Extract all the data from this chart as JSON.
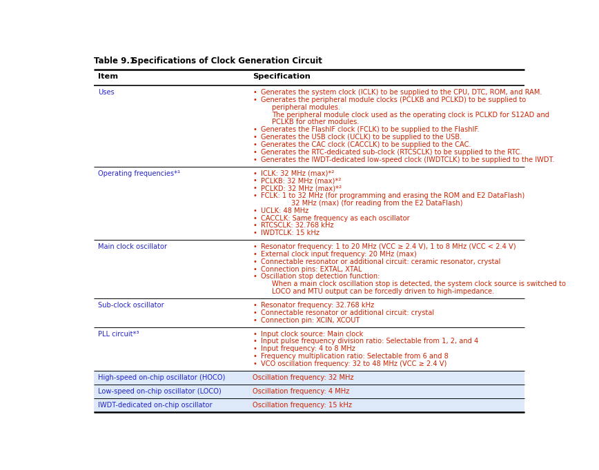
{
  "title": "Table 9.1",
  "title_bold": "Specifications of Clock Generation Circuit",
  "bg_color": "#ffffff",
  "item_color": "#2222cc",
  "spec_color": "#cc2200",
  "col_split": 0.355,
  "rows": [
    {
      "item": "Uses",
      "specs": [
        {
          "bullet": true,
          "indent": 0,
          "text": "Generates the system clock (ICLK) to be supplied to the CPU, DTC, ROM, and RAM."
        },
        {
          "bullet": true,
          "indent": 0,
          "text": "Generates the peripheral module clocks (PCLKB and PCLKD) to be supplied to"
        },
        {
          "bullet": false,
          "indent": 2,
          "text": "peripheral modules."
        },
        {
          "bullet": false,
          "indent": 2,
          "text": "The peripheral module clock used as the operating clock is PCLKD for S12AD and"
        },
        {
          "bullet": false,
          "indent": 2,
          "text": "PCLKB for other modules."
        },
        {
          "bullet": true,
          "indent": 0,
          "text": "Generates the FlashIF clock (FCLK) to be supplied to the FlashIF."
        },
        {
          "bullet": true,
          "indent": 0,
          "text": "Generates the USB clock (UCLK) to be supplied to the USB."
        },
        {
          "bullet": true,
          "indent": 0,
          "text": "Generates the CAC clock (CACCLK) to be supplied to the CAC."
        },
        {
          "bullet": true,
          "indent": 0,
          "text": "Generates the RTC-dedicated sub-clock (RTCSCLK) to be supplied to the RTC."
        },
        {
          "bullet": true,
          "indent": 0,
          "text": "Generates the IWDT-dedicated low-speed clock (IWDTCLK) to be supplied to the IWDT."
        }
      ],
      "row_bg": "#ffffff"
    },
    {
      "item": "Operating frequencies*¹",
      "specs": [
        {
          "bullet": true,
          "indent": 0,
          "text": "ICLK: 32 MHz (max)*²"
        },
        {
          "bullet": true,
          "indent": 0,
          "text": "PCLKB: 32 MHz (max)*²"
        },
        {
          "bullet": true,
          "indent": 0,
          "text": "PCLKD: 32 MHz (max)*²"
        },
        {
          "bullet": true,
          "indent": 0,
          "text": "FCLK: 1 to 32 MHz (for programming and erasing the ROM and E2 DataFlash)"
        },
        {
          "bullet": false,
          "indent": 4,
          "text": "32 MHz (max) (for reading from the E2 DataFlash)"
        },
        {
          "bullet": true,
          "indent": 0,
          "text": "UCLK: 48 MHz"
        },
        {
          "bullet": true,
          "indent": 0,
          "text": "CACCLK: Same frequency as each oscillator"
        },
        {
          "bullet": true,
          "indent": 0,
          "text": "RTCSCLK: 32.768 kHz"
        },
        {
          "bullet": true,
          "indent": 0,
          "text": "IWDTCLK: 15 kHz"
        }
      ],
      "row_bg": "#ffffff"
    },
    {
      "item": "Main clock oscillator",
      "specs": [
        {
          "bullet": true,
          "indent": 0,
          "text": "Resonator frequency: 1 to 20 MHz (VCC ≥ 2.4 V), 1 to 8 MHz (VCC < 2.4 V)"
        },
        {
          "bullet": true,
          "indent": 0,
          "text": "External clock input frequency: 20 MHz (max)"
        },
        {
          "bullet": true,
          "indent": 0,
          "text": "Connectable resonator or additional circuit: ceramic resonator, crystal"
        },
        {
          "bullet": true,
          "indent": 0,
          "text": "Connection pins: EXTAL, XTAL"
        },
        {
          "bullet": true,
          "indent": 0,
          "text": "Oscillation stop detection function:"
        },
        {
          "bullet": false,
          "indent": 2,
          "text": "When a main clock oscillation stop is detected, the system clock source is switched to"
        },
        {
          "bullet": false,
          "indent": 2,
          "text": "LOCO and MTU output can be forcedly driven to high-impedance."
        }
      ],
      "row_bg": "#ffffff"
    },
    {
      "item": "Sub-clock oscillator",
      "specs": [
        {
          "bullet": true,
          "indent": 0,
          "text": "Resonator frequency: 32.768 kHz"
        },
        {
          "bullet": true,
          "indent": 0,
          "text": "Connectable resonator or additional circuit: crystal"
        },
        {
          "bullet": true,
          "indent": 0,
          "text": "Connection pin: XCIN, XCOUT"
        }
      ],
      "row_bg": "#ffffff"
    },
    {
      "item": "PLL circuit*³",
      "specs": [
        {
          "bullet": true,
          "indent": 0,
          "text": "Input clock source: Main clock"
        },
        {
          "bullet": true,
          "indent": 0,
          "text": "Input pulse frequency division ratio: Selectable from 1, 2, and 4"
        },
        {
          "bullet": true,
          "indent": 0,
          "text": "Input frequency: 4 to 8 MHz"
        },
        {
          "bullet": true,
          "indent": 0,
          "text": "Frequency multiplication ratio: Selectable from 6 and 8"
        },
        {
          "bullet": true,
          "indent": 0,
          "text": "VCO oscillation frequency: 32 to 48 MHz (VCC ≥ 2.4 V)"
        }
      ],
      "row_bg": "#ffffff"
    },
    {
      "item": "High-speed on-chip oscillator (HOCO)",
      "specs": [
        {
          "bullet": false,
          "indent": 0,
          "text": "Oscillation frequency: 32 MHz"
        }
      ],
      "row_bg": "#dde8f8"
    },
    {
      "item": "Low-speed on-chip oscillator (LOCO)",
      "specs": [
        {
          "bullet": false,
          "indent": 0,
          "text": "Oscillation frequency: 4 MHz"
        }
      ],
      "row_bg": "#dde8f8"
    },
    {
      "item": "IWDT-dedicated on-chip oscillator",
      "specs": [
        {
          "bullet": false,
          "indent": 0,
          "text": "Oscillation frequency: 15 kHz"
        }
      ],
      "row_bg": "#dde8f8"
    }
  ]
}
